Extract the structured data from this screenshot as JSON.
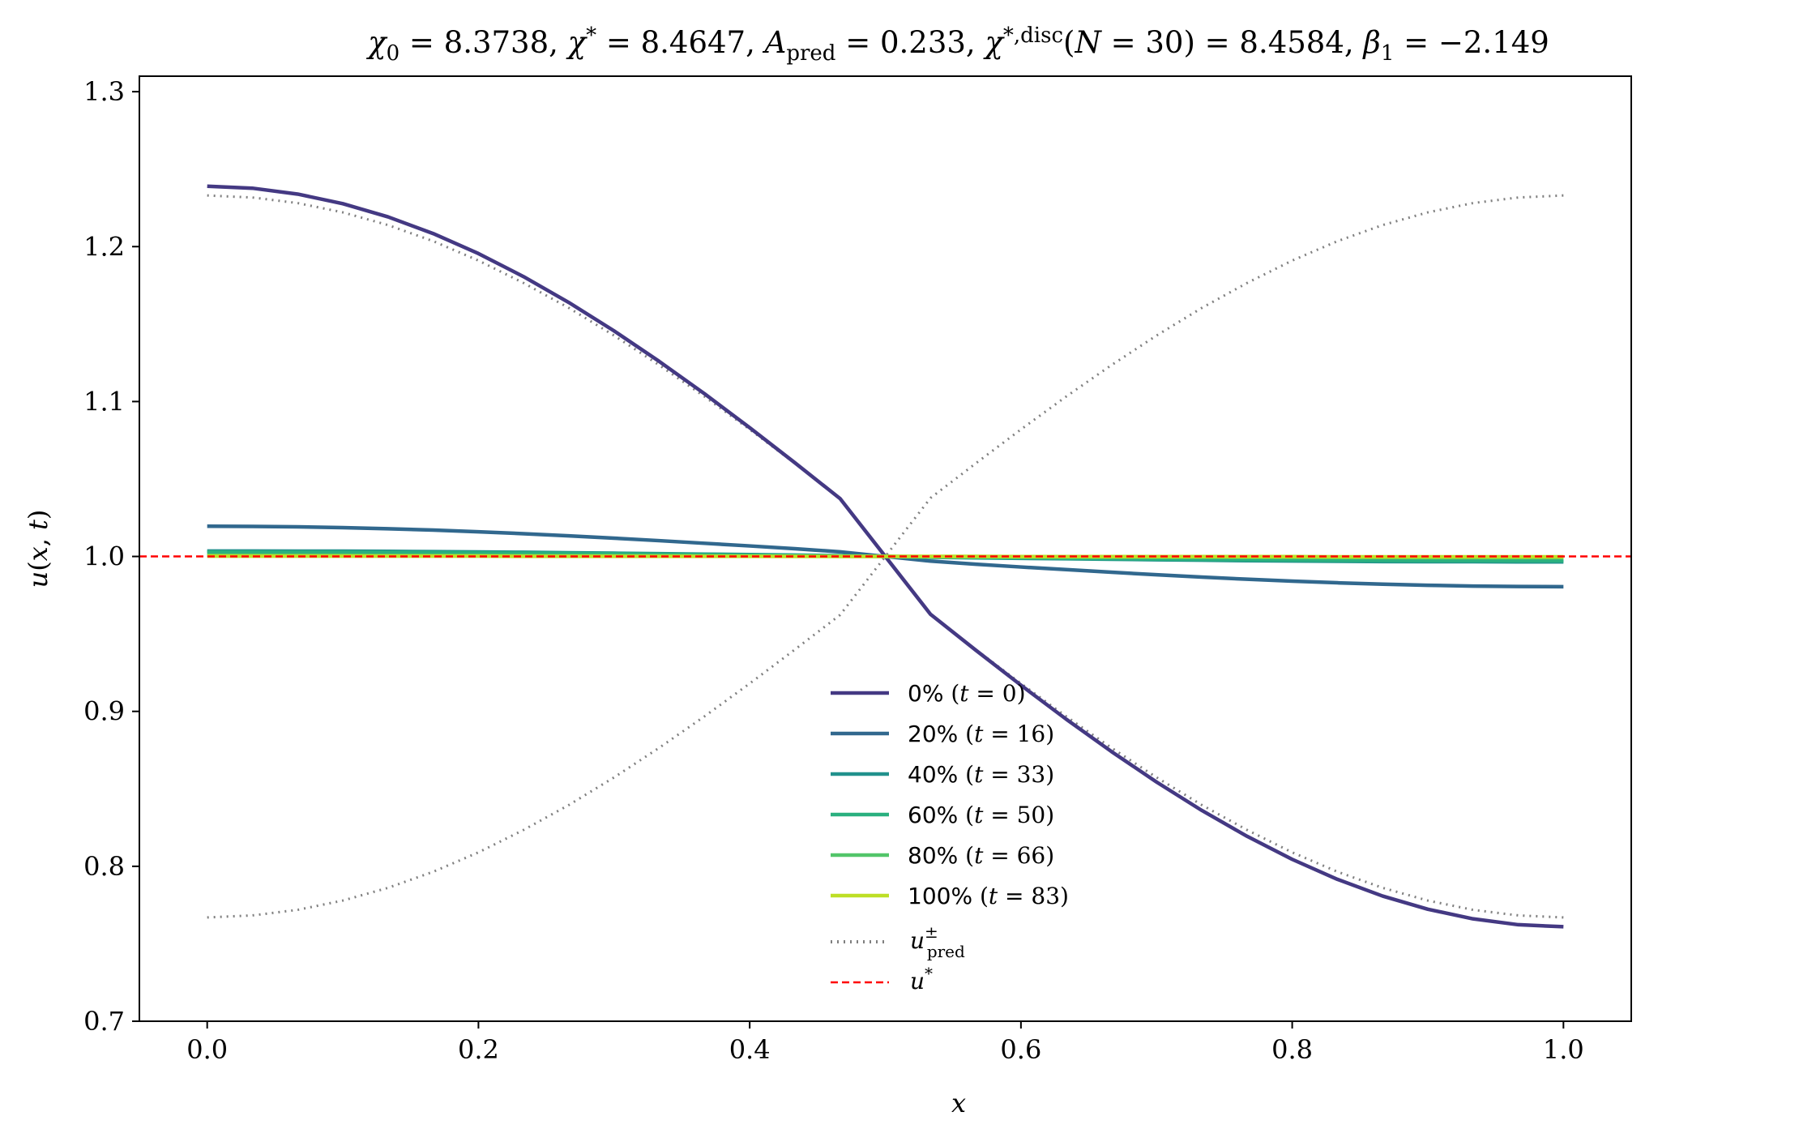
{
  "chart_data": {
    "type": "line",
    "title": "χ₀ = 8.3738, χ* = 8.4647, A_pred = 0.233, χ*,disc(N = 30) = 8.4584, β₁ = −2.149",
    "title_parts": {
      "chi0": "8.3738",
      "chi_star": "8.4647",
      "A_pred": "0.233",
      "N": "30",
      "chi_star_disc": "8.4584",
      "beta1": "−2.149"
    },
    "xlabel": "x",
    "ylabel": "u(x, t)",
    "xlim": [
      -0.05,
      1.05
    ],
    "ylim": [
      0.7,
      1.31
    ],
    "xticks": [
      "0.0",
      "0.2",
      "0.4",
      "0.6",
      "0.8",
      "1.0"
    ],
    "yticks": [
      "0.7",
      "0.8",
      "0.9",
      "1.0",
      "1.1",
      "1.2",
      "1.3"
    ],
    "grid": false,
    "legend_position": "lower-center",
    "x": [
      0.0,
      0.0333,
      0.0667,
      0.1,
      0.1333,
      0.1667,
      0.2,
      0.2333,
      0.2667,
      0.3,
      0.3333,
      0.3667,
      0.4,
      0.4333,
      0.4667,
      0.5,
      0.5333,
      0.5667,
      0.6,
      0.6333,
      0.6667,
      0.7,
      0.7333,
      0.7667,
      0.8,
      0.8333,
      0.8667,
      0.9,
      0.9333,
      0.9667,
      1.0
    ],
    "series": [
      {
        "name": "0% (t = 0)",
        "label_pct": "0%",
        "label_t": "0",
        "color": "#443983",
        "style": "solid",
        "values": [
          1.239,
          1.2377,
          1.2339,
          1.2277,
          1.2192,
          1.2084,
          1.1955,
          1.1806,
          1.1639,
          1.1456,
          1.1259,
          1.105,
          1.0831,
          1.0605,
          1.0373,
          1.0,
          0.9627,
          0.9395,
          0.9169,
          0.895,
          0.8741,
          0.8544,
          0.8361,
          0.8194,
          0.8045,
          0.7916,
          0.7808,
          0.7723,
          0.7661,
          0.7623,
          0.761
        ]
      },
      {
        "name": "20% (t = 16)",
        "label_pct": "20%",
        "label_t": "16",
        "color": "#31688e",
        "style": "solid",
        "values": [
          1.0195,
          1.0194,
          1.0191,
          1.0186,
          1.0179,
          1.017,
          1.0159,
          1.0147,
          1.0133,
          1.0118,
          1.0102,
          1.0085,
          1.0068,
          1.005,
          1.003,
          1.0,
          0.997,
          0.995,
          0.9932,
          0.9915,
          0.9898,
          0.9882,
          0.9867,
          0.9853,
          0.9841,
          0.983,
          0.9821,
          0.9814,
          0.9809,
          0.9806,
          0.9805
        ]
      },
      {
        "name": "40% (t = 33)",
        "label_pct": "40%",
        "label_t": "33",
        "color": "#21918c",
        "style": "solid",
        "values": [
          1.0035,
          1.0035,
          1.0034,
          1.0034,
          1.0033,
          1.0031,
          1.0029,
          1.0027,
          1.0024,
          1.0021,
          1.0018,
          1.0015,
          1.0012,
          1.0009,
          1.0005,
          1.0,
          0.9995,
          0.9991,
          0.9988,
          0.9985,
          0.9982,
          0.9979,
          0.9976,
          0.9973,
          0.9971,
          0.9969,
          0.9967,
          0.9966,
          0.9966,
          0.9965,
          0.9965
        ]
      },
      {
        "name": "60% (t = 50)",
        "label_pct": "60%",
        "label_t": "50",
        "color": "#2ab07f",
        "style": "solid",
        "values": [
          1.0028,
          1.0028,
          1.0027,
          1.0027,
          1.0026,
          1.0025,
          1.0023,
          1.0021,
          1.0019,
          1.0017,
          1.0014,
          1.0012,
          1.0009,
          1.0007,
          1.0004,
          1.0,
          0.9996,
          0.9993,
          0.9991,
          0.9988,
          0.9986,
          0.9983,
          0.9981,
          0.9979,
          0.9977,
          0.9975,
          0.9974,
          0.9973,
          0.9973,
          0.9972,
          0.9972
        ]
      },
      {
        "name": "80% (t = 66)",
        "label_pct": "80%",
        "label_t": "66",
        "color": "#52c569",
        "style": "solid",
        "values": [
          1.0008,
          1.0008,
          1.0008,
          1.0008,
          1.0007,
          1.0007,
          1.0007,
          1.0006,
          1.0005,
          1.0005,
          1.0004,
          1.0003,
          1.0003,
          1.0002,
          1.0001,
          1.0,
          0.9999,
          0.9998,
          0.9997,
          0.9997,
          0.9996,
          0.9995,
          0.9995,
          0.9994,
          0.9993,
          0.9993,
          0.9993,
          0.9992,
          0.9992,
          0.9992,
          0.9992
        ]
      },
      {
        "name": "100% (t = 83)",
        "label_pct": "100%",
        "label_t": "83",
        "color": "#bddf26",
        "style": "solid",
        "values": [
          1.0002,
          1.0002,
          1.0002,
          1.0002,
          1.0002,
          1.0002,
          1.0002,
          1.0001,
          1.0001,
          1.0001,
          1.0001,
          1.0001,
          1.0001,
          1.0,
          1.0,
          1.0,
          1.0,
          1.0,
          0.9999,
          0.9999,
          0.9999,
          0.9999,
          0.9999,
          0.9999,
          0.9999,
          0.9998,
          0.9998,
          0.9998,
          0.9998,
          0.9998,
          0.9998
        ]
      },
      {
        "name": "u±pred (+)",
        "color": "#808080",
        "style": "dotted",
        "in_legend": true,
        "values": [
          0.767,
          0.7683,
          0.7719,
          0.7779,
          0.7861,
          0.7965,
          0.809,
          0.8235,
          0.8396,
          0.8574,
          0.8765,
          0.8968,
          0.918,
          0.9399,
          0.9623,
          1.0,
          1.0377,
          1.0601,
          1.082,
          1.1032,
          1.1235,
          1.1426,
          1.1604,
          1.1765,
          1.191,
          1.2035,
          1.2139,
          1.2221,
          1.2281,
          1.2317,
          1.233
        ]
      },
      {
        "name": "u±pred (−)",
        "color": "#808080",
        "style": "dotted",
        "in_legend": false,
        "values": [
          1.233,
          1.2317,
          1.2281,
          1.2221,
          1.2139,
          1.2035,
          1.191,
          1.1765,
          1.1604,
          1.1426,
          1.1235,
          1.1032,
          1.082,
          1.0601,
          1.0377,
          1.0,
          0.9623,
          0.9399,
          0.918,
          0.8968,
          0.8765,
          0.8574,
          0.8396,
          0.8235,
          0.809,
          0.7965,
          0.7861,
          0.7779,
          0.7719,
          0.7683,
          0.767
        ]
      }
    ],
    "hlines": [
      {
        "name": "u*",
        "y": 1.0,
        "color": "#ff0000",
        "style": "dashed"
      }
    ],
    "legend": {
      "pred_label_base": "u",
      "pred_label_sup": "±",
      "pred_label_sub": "pred",
      "ustar_label_base": "u",
      "ustar_label_sup": "*"
    }
  }
}
